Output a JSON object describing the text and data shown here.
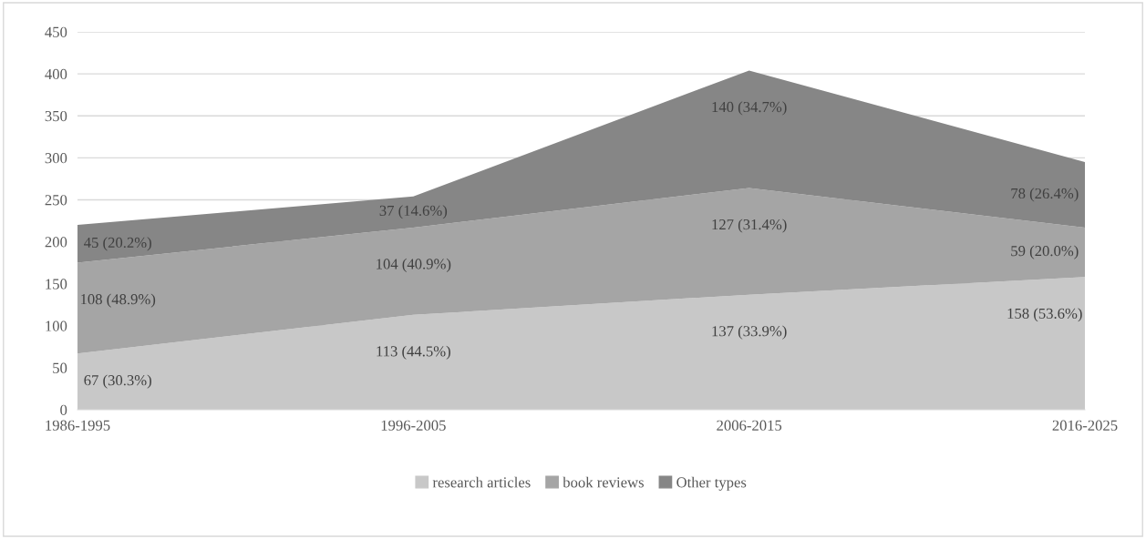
{
  "chart_data": {
    "type": "area",
    "stacked": true,
    "categories": [
      "1986-1995",
      "1996-2005",
      "2006-2015",
      "2016-2025"
    ],
    "series": [
      {
        "name": "research articles",
        "color": "#c8c8c8",
        "values": [
          67,
          113,
          137,
          158
        ],
        "value_labels": [
          "67 (30.3%)",
          "113 (44.5%)",
          "137 (33.9%)",
          "158 (53.6%)"
        ]
      },
      {
        "name": "book reviews",
        "color": "#a5a5a5",
        "values": [
          108,
          104,
          127,
          59
        ],
        "value_labels": [
          "108 (48.9%)",
          "104 (40.9%)",
          "127 (31.4%)",
          "59 (20.0%)"
        ]
      },
      {
        "name": "Other types",
        "color": "#868686",
        "values": [
          45,
          37,
          140,
          78
        ],
        "value_labels": [
          "45 (20.2%)",
          "37 (14.6%)",
          "140 (34.7%)",
          "78 (26.4%)"
        ]
      }
    ],
    "ylim": [
      0,
      450
    ],
    "yticks": [
      0,
      50,
      100,
      150,
      200,
      250,
      300,
      350,
      400,
      450
    ],
    "grid": "y",
    "legend": "bottom"
  }
}
